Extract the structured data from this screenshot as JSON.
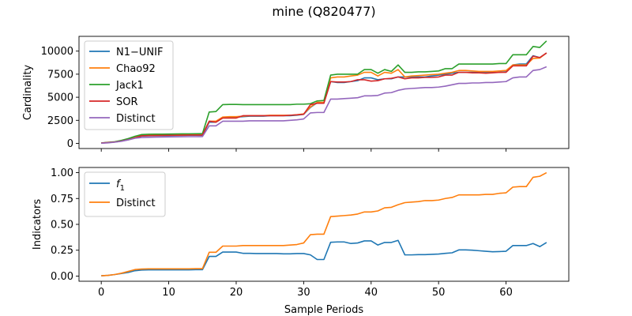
{
  "figure": {
    "title": "mine (Q820477)"
  },
  "chart_data": [
    {
      "type": "line",
      "ylabel": "Cardinality",
      "xlabel": "",
      "xlim": [
        -3.3,
        69.3
      ],
      "ylim": [
        -555,
        11600
      ],
      "xticks": [
        0,
        10,
        20,
        30,
        40,
        50,
        60
      ],
      "yticks": [
        0,
        2500,
        5000,
        7500,
        10000
      ],
      "ytick_labels": [
        "0",
        "2500",
        "5000",
        "7500",
        "10000"
      ],
      "x_tick_labels_visible": false,
      "legend_position": "upper-left",
      "series": [
        {
          "name": "N1−UNIF",
          "color": "#1f77b4",
          "values": [
            40,
            90,
            150,
            250,
            400,
            600,
            800,
            820,
            830,
            840,
            850,
            860,
            870,
            880,
            880,
            880,
            2300,
            2300,
            2800,
            2850,
            2850,
            2900,
            2950,
            2950,
            2950,
            3000,
            3000,
            3000,
            3000,
            3050,
            3150,
            3900,
            4400,
            4400,
            6700,
            6600,
            6600,
            6700,
            6800,
            7100,
            7100,
            6900,
            7000,
            7000,
            7200,
            7200,
            7200,
            7200,
            7200,
            7300,
            7400,
            7500,
            7600,
            7700,
            7700,
            7700,
            7700,
            7700,
            7700,
            7700,
            7750,
            8500,
            8600,
            8600,
            9500,
            9300,
            9800
          ]
        },
        {
          "name": "Chao92",
          "color": "#ff7f0e",
          "values": [
            40,
            90,
            150,
            260,
            420,
            640,
            850,
            870,
            880,
            890,
            900,
            910,
            920,
            930,
            930,
            930,
            2400,
            2400,
            2850,
            2900,
            2900,
            2950,
            3000,
            3000,
            3000,
            3050,
            3050,
            3050,
            3050,
            3100,
            3200,
            3950,
            4450,
            4450,
            7100,
            7200,
            7200,
            7300,
            7400,
            7700,
            7700,
            7300,
            7700,
            7600,
            8000,
            7200,
            7300,
            7350,
            7400,
            7450,
            7500,
            7600,
            7700,
            7900,
            7900,
            7850,
            7800,
            7800,
            7800,
            7850,
            7900,
            8500,
            8500,
            8500,
            9200,
            9250,
            9800
          ]
        },
        {
          "name": "Jack1",
          "color": "#2ca02c",
          "values": [
            50,
            110,
            180,
            330,
            520,
            770,
            960,
            990,
            1000,
            1000,
            1010,
            1020,
            1030,
            1040,
            1050,
            1060,
            3400,
            3450,
            4200,
            4220,
            4220,
            4200,
            4200,
            4200,
            4200,
            4200,
            4200,
            4200,
            4200,
            4250,
            4250,
            4300,
            4600,
            4650,
            7400,
            7500,
            7500,
            7500,
            7500,
            8000,
            8000,
            7600,
            8000,
            7800,
            8500,
            7700,
            7700,
            7750,
            7750,
            7800,
            7850,
            8100,
            8100,
            8600,
            8600,
            8600,
            8600,
            8600,
            8600,
            8650,
            8650,
            9600,
            9600,
            9600,
            10500,
            10400,
            11100
          ]
        },
        {
          "name": "SOR",
          "color": "#d62728",
          "values": [
            40,
            90,
            150,
            260,
            400,
            610,
            820,
            840,
            850,
            860,
            870,
            880,
            890,
            900,
            900,
            900,
            2400,
            2300,
            2750,
            2750,
            2750,
            3000,
            3000,
            3000,
            3000,
            3000,
            3000,
            3000,
            3050,
            3100,
            3150,
            4200,
            4350,
            4350,
            6700,
            6650,
            6650,
            6700,
            6900,
            6900,
            6750,
            6800,
            7000,
            7050,
            7200,
            7000,
            7100,
            7100,
            7150,
            7150,
            7200,
            7400,
            7400,
            7700,
            7700,
            7650,
            7650,
            7600,
            7650,
            7700,
            7700,
            8400,
            8400,
            8400,
            9450,
            9300,
            9800
          ]
        },
        {
          "name": "Distinct",
          "color": "#9467bd",
          "values": [
            20,
            60,
            130,
            230,
            380,
            560,
            640,
            660,
            680,
            690,
            700,
            710,
            720,
            730,
            730,
            740,
            1900,
            1900,
            2400,
            2400,
            2400,
            2400,
            2450,
            2450,
            2450,
            2450,
            2450,
            2450,
            2500,
            2550,
            2650,
            3300,
            3350,
            3350,
            4800,
            4800,
            4850,
            4900,
            4950,
            5150,
            5150,
            5200,
            5450,
            5500,
            5750,
            5900,
            5950,
            6000,
            6050,
            6050,
            6100,
            6200,
            6350,
            6500,
            6500,
            6550,
            6550,
            6600,
            6600,
            6650,
            6700,
            7100,
            7200,
            7200,
            7900,
            8000,
            8300
          ]
        }
      ]
    },
    {
      "type": "line",
      "ylabel": "Indicators",
      "xlabel": "Sample Periods",
      "xlim": [
        -3.3,
        69.3
      ],
      "ylim": [
        -0.05,
        1.05
      ],
      "xticks": [
        0,
        10,
        20,
        30,
        40,
        50,
        60
      ],
      "xtick_labels": [
        "0",
        "10",
        "20",
        "30",
        "40",
        "50",
        "60"
      ],
      "yticks": [
        0,
        0.25,
        0.5,
        0.75,
        1.0
      ],
      "ytick_labels": [
        "0.00",
        "0.25",
        "0.50",
        "0.75",
        "1.00"
      ],
      "legend_position": "upper-left",
      "series": [
        {
          "name": "f1",
          "name_main": "f",
          "name_sub": "1",
          "color": "#1f77b4",
          "values": [
            0.003,
            0.007,
            0.015,
            0.025,
            0.035,
            0.052,
            0.058,
            0.06,
            0.06,
            0.06,
            0.06,
            0.06,
            0.06,
            0.06,
            0.062,
            0.062,
            0.19,
            0.19,
            0.232,
            0.232,
            0.232,
            0.22,
            0.22,
            0.218,
            0.218,
            0.218,
            0.218,
            0.215,
            0.215,
            0.218,
            0.218,
            0.205,
            0.16,
            0.16,
            0.327,
            0.33,
            0.33,
            0.315,
            0.32,
            0.34,
            0.34,
            0.3,
            0.325,
            0.325,
            0.345,
            0.205,
            0.205,
            0.207,
            0.207,
            0.21,
            0.213,
            0.22,
            0.225,
            0.253,
            0.253,
            0.25,
            0.245,
            0.24,
            0.235,
            0.237,
            0.24,
            0.295,
            0.295,
            0.295,
            0.315,
            0.285,
            0.325
          ]
        },
        {
          "name": "Distinct",
          "color": "#ff7f0e",
          "values": [
            0.003,
            0.007,
            0.015,
            0.028,
            0.045,
            0.063,
            0.068,
            0.07,
            0.07,
            0.07,
            0.07,
            0.07,
            0.07,
            0.07,
            0.072,
            0.072,
            0.23,
            0.23,
            0.29,
            0.29,
            0.29,
            0.295,
            0.295,
            0.295,
            0.295,
            0.295,
            0.295,
            0.295,
            0.3,
            0.305,
            0.32,
            0.4,
            0.405,
            0.405,
            0.575,
            0.58,
            0.585,
            0.59,
            0.6,
            0.62,
            0.62,
            0.63,
            0.66,
            0.665,
            0.69,
            0.71,
            0.715,
            0.72,
            0.73,
            0.73,
            0.735,
            0.75,
            0.76,
            0.785,
            0.785,
            0.785,
            0.785,
            0.79,
            0.79,
            0.8,
            0.805,
            0.86,
            0.865,
            0.865,
            0.955,
            0.965,
            1.0
          ]
        }
      ]
    }
  ]
}
